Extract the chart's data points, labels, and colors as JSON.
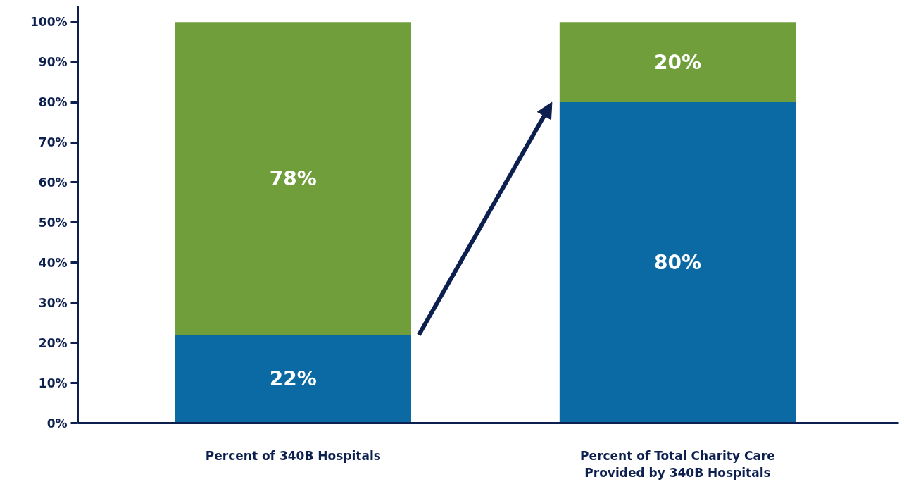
{
  "chart_data": {
    "type": "bar",
    "stacked": true,
    "categories": [
      "Percent of 340B Hospitals",
      "Percent of Total Charity Care Provided by 340B Hospitals"
    ],
    "series": [
      {
        "color": "#0b6aa3",
        "values": [
          22,
          80
        ],
        "value_labels": [
          "22%",
          "80%"
        ]
      },
      {
        "color": "#6f9e3a",
        "values": [
          78,
          20
        ],
        "value_labels": [
          "78%",
          "20%"
        ]
      }
    ],
    "ylim": [
      0,
      104
    ],
    "yticks": [
      {
        "value": 0,
        "label": "0%"
      },
      {
        "value": 10,
        "label": "10%"
      },
      {
        "value": 20,
        "label": "20%"
      },
      {
        "value": 30,
        "label": "30%"
      },
      {
        "value": 40,
        "label": "40%"
      },
      {
        "value": 50,
        "label": "50%"
      },
      {
        "value": 60,
        "label": "60%"
      },
      {
        "value": 70,
        "label": "70%"
      },
      {
        "value": 80,
        "label": "80%"
      },
      {
        "value": 90,
        "label": "90%"
      },
      {
        "value": 100,
        "label": "100%"
      }
    ],
    "grid": false
  }
}
